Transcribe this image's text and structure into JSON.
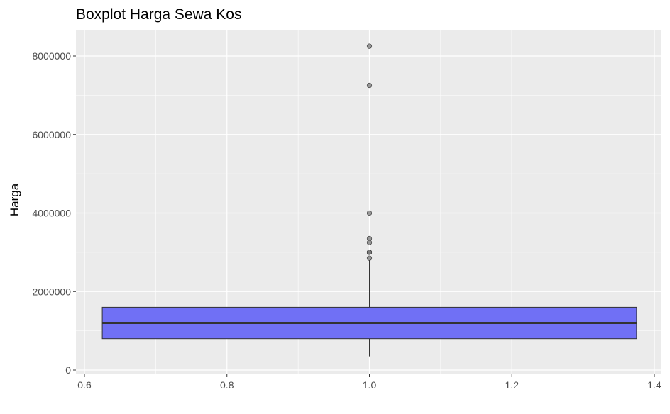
{
  "chart_data": {
    "type": "boxplot",
    "title": "Boxplot Harga Sewa Kos",
    "xlabel": "",
    "ylabel": "Harga",
    "xlim": [
      0.6,
      1.4
    ],
    "ylim": [
      0,
      8500000
    ],
    "x_ticks": [
      0.6,
      0.8,
      1.0,
      1.2,
      1.4
    ],
    "x_tick_labels": [
      "0.6",
      "0.8",
      "1.0",
      "1.2",
      "1.4"
    ],
    "y_ticks": [
      0,
      2000000,
      4000000,
      6000000,
      8000000
    ],
    "y_tick_labels": [
      "0",
      "2000000",
      "4000000",
      "6000000",
      "8000000"
    ],
    "grid": true,
    "box": {
      "x": 1.0,
      "x_min": 0.625,
      "x_max": 1.375,
      "whisker_low": 350000,
      "q1": 800000,
      "median": 1200000,
      "q3": 1600000,
      "whisker_high": 2800000,
      "fill": "#7070f5",
      "outline": "#333333"
    },
    "outliers": [
      {
        "x": 1.0,
        "y": 8250000
      },
      {
        "x": 1.0,
        "y": 7250000
      },
      {
        "x": 1.0,
        "y": 4000000
      },
      {
        "x": 1.0,
        "y": 3350000
      },
      {
        "x": 1.0,
        "y": 3250000
      },
      {
        "x": 1.0,
        "y": 3000000
      },
      {
        "x": 1.0,
        "y": 3000000
      },
      {
        "x": 1.0,
        "y": 3000000
      },
      {
        "x": 1.0,
        "y": 2850000
      }
    ],
    "panel_background": "#ebebeb",
    "grid_color": "#ffffff"
  }
}
